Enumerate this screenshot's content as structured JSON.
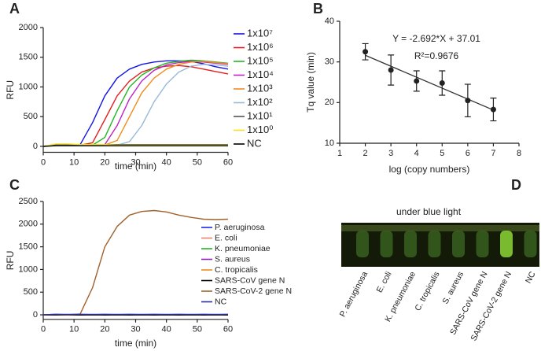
{
  "chart_data": [
    {
      "type": "line",
      "panel_label": "A",
      "xlabel": "time (min)",
      "ylabel": "RFU",
      "x": [
        0,
        4,
        8,
        12,
        16,
        20,
        24,
        28,
        32,
        36,
        40,
        44,
        48,
        52,
        56,
        60
      ],
      "xlim": [
        0,
        60
      ],
      "xticks": [
        0,
        10,
        20,
        30,
        40,
        50,
        60
      ],
      "ylim": [
        -100,
        2000
      ],
      "yticks": [
        0,
        500,
        1000,
        1500,
        2000
      ],
      "series": [
        {
          "name": "1x10⁷",
          "color": "#1414e6",
          "values": [
            0,
            30,
            20,
            30,
            400,
            850,
            1150,
            1300,
            1380,
            1420,
            1440,
            1440,
            1430,
            1390,
            1340,
            1300
          ]
        },
        {
          "name": "1x10⁶",
          "color": "#e61e1e",
          "values": [
            0,
            20,
            20,
            20,
            60,
            450,
            850,
            1100,
            1250,
            1320,
            1350,
            1360,
            1340,
            1300,
            1260,
            1220
          ]
        },
        {
          "name": "1x10⁵",
          "color": "#22b822",
          "values": [
            0,
            20,
            20,
            20,
            20,
            150,
            600,
            1000,
            1200,
            1320,
            1400,
            1430,
            1450,
            1440,
            1420,
            1400
          ]
        },
        {
          "name": "1x10⁴",
          "color": "#c020c8",
          "values": [
            0,
            20,
            20,
            20,
            20,
            30,
            350,
            800,
            1100,
            1280,
            1370,
            1410,
            1430,
            1420,
            1400,
            1380
          ]
        },
        {
          "name": "1x10³",
          "color": "#f08c1e",
          "values": [
            0,
            20,
            20,
            20,
            20,
            20,
            100,
            500,
            900,
            1150,
            1300,
            1380,
            1420,
            1430,
            1410,
            1390
          ]
        },
        {
          "name": "1x10²",
          "color": "#9ab8d8",
          "values": [
            0,
            20,
            20,
            20,
            20,
            20,
            20,
            80,
            350,
            750,
            1050,
            1250,
            1350,
            1380,
            1370,
            1350
          ]
        },
        {
          "name": "1x10¹",
          "color": "#555555",
          "values": [
            0,
            30,
            30,
            30,
            30,
            30,
            30,
            30,
            30,
            30,
            30,
            30,
            30,
            30,
            30,
            30
          ]
        },
        {
          "name": "1x10⁰",
          "color": "#f0e01e",
          "values": [
            0,
            40,
            40,
            30,
            30,
            30,
            20,
            20,
            20,
            20,
            20,
            20,
            20,
            20,
            20,
            20
          ]
        },
        {
          "name": "NC",
          "color": "#000000",
          "values": [
            0,
            10,
            10,
            10,
            10,
            10,
            10,
            10,
            10,
            10,
            10,
            10,
            10,
            10,
            10,
            10
          ]
        }
      ]
    },
    {
      "type": "scatter",
      "panel_label": "B",
      "xlabel": "log (copy numbers)",
      "ylabel": "Tq value (min)",
      "xlim": [
        1,
        8
      ],
      "xticks": [
        1,
        2,
        3,
        4,
        5,
        6,
        7,
        8
      ],
      "ylim": [
        10,
        40
      ],
      "yticks": [
        10,
        20,
        30,
        40
      ],
      "x": [
        2,
        3,
        4,
        5,
        6,
        7
      ],
      "values": [
        32.5,
        28,
        25.3,
        24.8,
        20.5,
        18.3
      ],
      "errors": [
        2,
        3.7,
        2.5,
        3,
        4,
        2.8
      ],
      "color": "#222222",
      "fit": {
        "slope": -2.692,
        "intercept": 37.01
      },
      "annotations": [
        "Y = -2.692*X + 37.01",
        "R²=0.9676"
      ]
    },
    {
      "type": "line",
      "panel_label": "C",
      "xlabel": "time (min)",
      "ylabel": "RFU",
      "x": [
        0,
        4,
        8,
        12,
        16,
        20,
        24,
        28,
        32,
        36,
        40,
        44,
        48,
        52,
        56,
        60
      ],
      "xlim": [
        0,
        60
      ],
      "xticks": [
        0,
        10,
        20,
        30,
        40,
        50,
        60
      ],
      "ylim": [
        -100,
        2500
      ],
      "yticks": [
        0,
        500,
        1000,
        1500,
        2000,
        2500
      ],
      "series": [
        {
          "name": "P. aeruginosa",
          "color": "#1e28e6",
          "values": [
            0,
            10,
            5,
            10,
            5,
            10,
            5,
            10,
            5,
            10,
            5,
            10,
            5,
            10,
            5,
            10
          ]
        },
        {
          "name": "E. coli",
          "color": "#f08070",
          "values": [
            0,
            5,
            5,
            5,
            5,
            5,
            5,
            5,
            5,
            5,
            5,
            5,
            5,
            5,
            5,
            5
          ]
        },
        {
          "name": "K. pneumoniae",
          "color": "#22b822",
          "values": [
            0,
            0,
            5,
            0,
            5,
            0,
            5,
            0,
            5,
            0,
            5,
            0,
            5,
            0,
            5,
            0
          ]
        },
        {
          "name": "S. aureus",
          "color": "#9020c0",
          "values": [
            0,
            5,
            0,
            5,
            0,
            5,
            0,
            5,
            0,
            5,
            0,
            5,
            0,
            5,
            0,
            5
          ]
        },
        {
          "name": "C. tropicalis",
          "color": "#f08c1e",
          "values": [
            0,
            0,
            0,
            0,
            0,
            0,
            0,
            0,
            0,
            0,
            0,
            0,
            0,
            0,
            0,
            0
          ]
        },
        {
          "name": "SARS-CoV gene N",
          "color": "#000000",
          "values": [
            0,
            -5,
            0,
            -5,
            0,
            -5,
            0,
            -5,
            0,
            -5,
            0,
            -5,
            0,
            -5,
            0,
            -5
          ]
        },
        {
          "name": "SARS-CoV-2 gene N",
          "color": "#a0622d",
          "values": [
            0,
            10,
            0,
            20,
            600,
            1500,
            1950,
            2200,
            2280,
            2300,
            2270,
            2200,
            2150,
            2110,
            2100,
            2110
          ]
        },
        {
          "name": "NC",
          "color": "#2830a0",
          "values": [
            0,
            10,
            10,
            10,
            10,
            10,
            10,
            10,
            10,
            10,
            10,
            10,
            10,
            10,
            10,
            10
          ]
        }
      ]
    },
    {
      "type": "image",
      "panel_label": "D",
      "title": "under blue light",
      "categories": [
        "P. aeruginosa",
        "E. coli",
        "K. pneumoniae",
        "C. tropicalis",
        "S. aureus",
        "SARS-CoV gene N",
        "SARS-CoV-2 gene N",
        "NC"
      ],
      "colors": [
        "#3c6a22",
        "#3c6a22",
        "#3c6a22",
        "#3c6a22",
        "#3c6a22",
        "#3c6a22",
        "#9cf03c",
        "#3c6a22"
      ]
    }
  ]
}
